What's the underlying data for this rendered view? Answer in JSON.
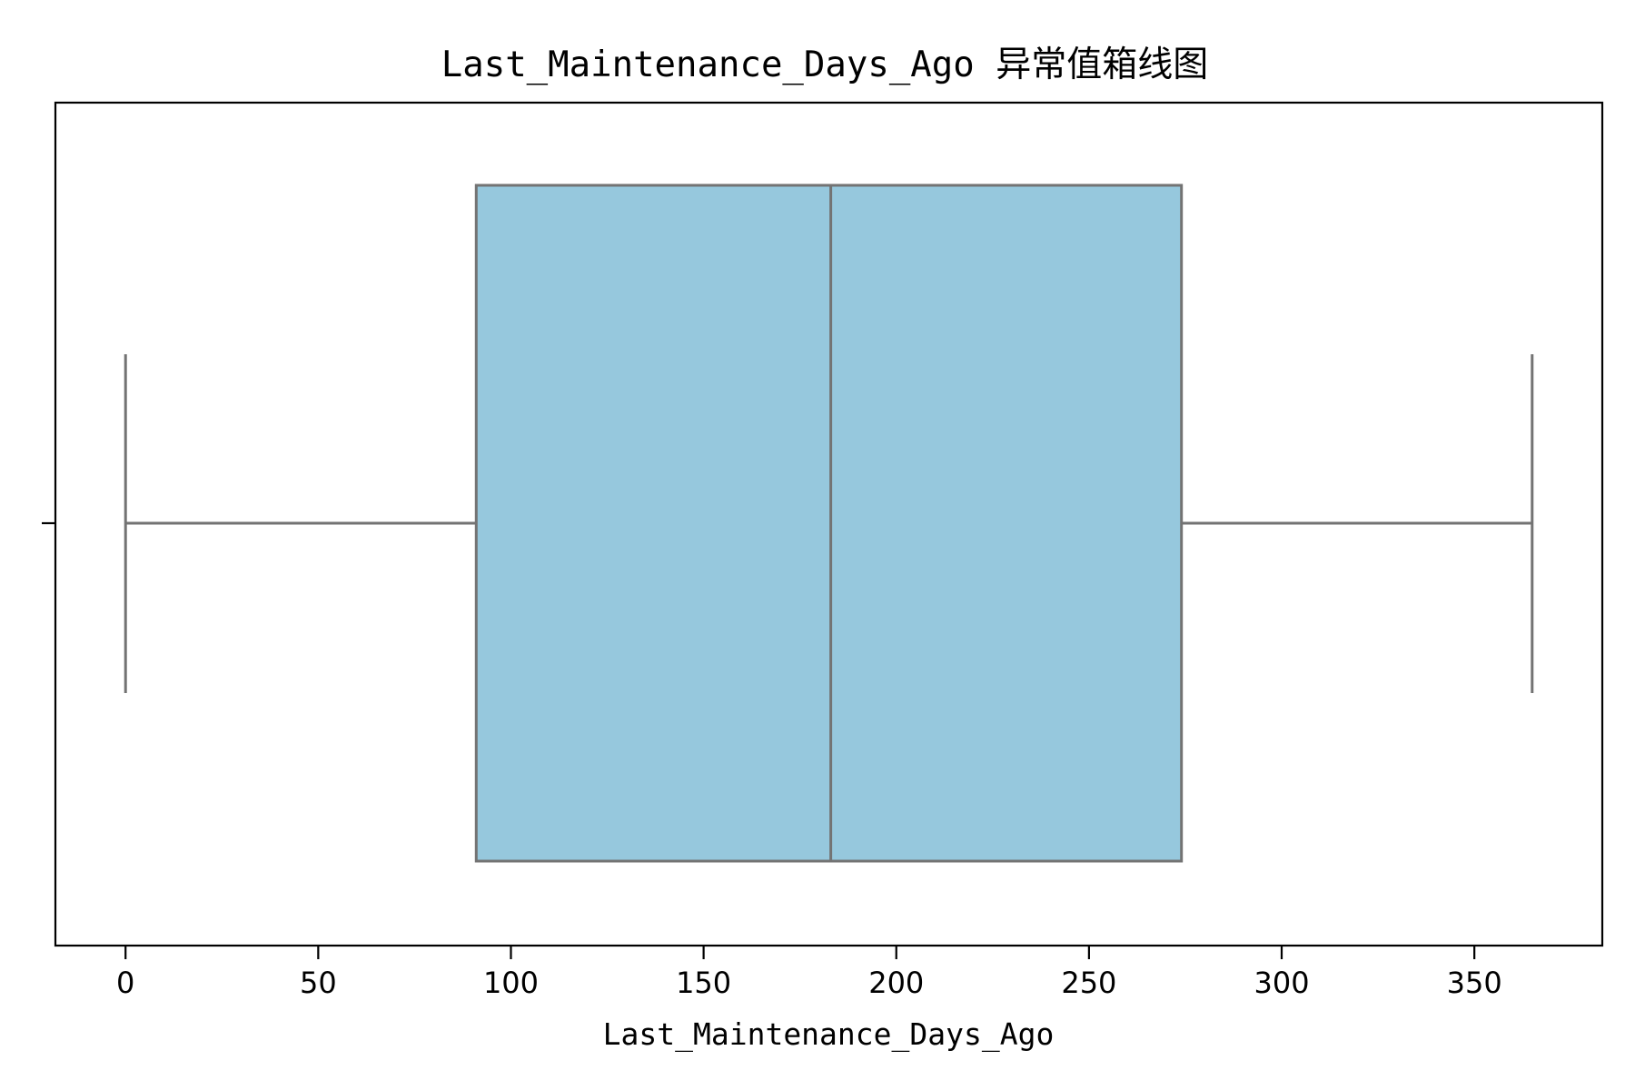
{
  "chart_data": {
    "type": "boxplot",
    "title": "Last_Maintenance_Days_Ago 异常值箱线图",
    "xlabel": "Last_Maintenance_Days_Ago",
    "ylabel": "",
    "xlim": [
      -18.2,
      383.2
    ],
    "xticks": [
      0,
      50,
      100,
      150,
      200,
      250,
      300,
      350
    ],
    "xtick_labels": [
      "0",
      "50",
      "100",
      "150",
      "200",
      "250",
      "300",
      "350"
    ],
    "grid": false,
    "legend": "none",
    "box": {
      "whisker_low": 0,
      "q1": 91,
      "median": 183,
      "q3": 274,
      "whisker_high": 365,
      "outliers": []
    },
    "colors": {
      "box_fill": "#96c8dd",
      "box_line": "#737373",
      "axis": "#000000"
    }
  }
}
